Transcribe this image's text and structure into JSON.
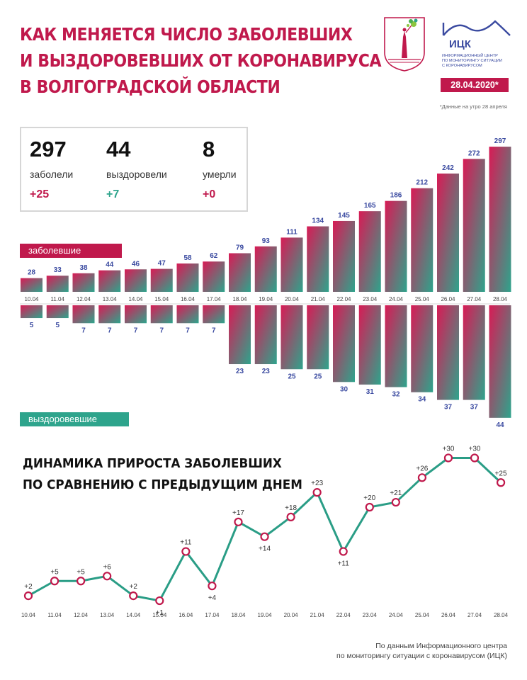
{
  "header": {
    "title_lines": [
      "КАК МЕНЯЕТСЯ ЧИСЛО ЗАБОЛЕВШИХ",
      "И ВЫЗДОРОВЕВШИХ ОТ КОРОНАВИРУСА",
      "В ВОЛГОГРАДСКОЙ ОБЛАСТИ"
    ],
    "logo_name": "ИЦК",
    "logo_sub": "ИНФОРМАЦИОННЫЙ ЦЕНТР\nПО МОНИТОРИНГУ СИТУАЦИИ\nС КОРОНАВИРУСОМ",
    "date": "28.04.2020*",
    "footnote": "*Данные на утро 28 апреля"
  },
  "summary": {
    "sick": {
      "value": "297",
      "label": "заболели",
      "delta": "+25"
    },
    "recovered": {
      "value": "44",
      "label": "выздоровели",
      "delta": "+7"
    },
    "dead": {
      "value": "8",
      "label": "умерли",
      "delta": "+0"
    }
  },
  "colors": {
    "accent": "#c0194c",
    "teal": "#2ea48c",
    "line": "#2a9d86"
  },
  "chart_data": [
    {
      "type": "bar",
      "categories": [
        "10.04",
        "11.04",
        "12.04",
        "13.04",
        "14.04",
        "15.04",
        "16.04",
        "17.04",
        "18.04",
        "19.04",
        "20.04",
        "21.04",
        "22.04",
        "23.04",
        "24.04",
        "25.04",
        "26.04",
        "27.04",
        "28.04"
      ],
      "series": [
        {
          "name": "заболевшие",
          "values": [
            28,
            33,
            38,
            44,
            46,
            47,
            58,
            62,
            79,
            93,
            111,
            134,
            145,
            165,
            186,
            212,
            242,
            272,
            297
          ]
        },
        {
          "name": "выздоровевшие",
          "values": [
            5,
            5,
            7,
            7,
            7,
            7,
            7,
            7,
            23,
            23,
            25,
            25,
            30,
            31,
            32,
            34,
            37,
            37,
            44
          ]
        }
      ],
      "title": "",
      "xlabel": "",
      "ylabel": "",
      "grid": false
    },
    {
      "type": "line",
      "title": "ДИНАМИКА ПРИРОСТА ЗАБОЛЕВШИХ ПО СРАВНЕНИЮ С ПРЕДЫДУЩИМ ДНЕМ",
      "title_lines": [
        "ДИНАМИКА ПРИРОСТА ЗАБОЛЕВШИХ",
        "ПО СРАВНЕНИЮ С ПРЕДЫДУЩИМ ДНЕМ"
      ],
      "x": [
        "10.04",
        "11.04",
        "12.04",
        "13.04",
        "14.04",
        "15.04",
        "16.04",
        "17.04",
        "18.04",
        "19.04",
        "20.04",
        "21.04",
        "22.04",
        "23.04",
        "24.04",
        "25.04",
        "26.04",
        "27.04",
        "28.04"
      ],
      "values": [
        2,
        5,
        5,
        6,
        2,
        1,
        11,
        4,
        17,
        14,
        18,
        23,
        11,
        20,
        21,
        26,
        30,
        30,
        25
      ],
      "labels": [
        "+2",
        "+5",
        "+5",
        "+6",
        "+2",
        "+1",
        "+11",
        "+4",
        "+17",
        "+14",
        "+18",
        "+23",
        "+11",
        "+20",
        "+21",
        "+26",
        "+30",
        "+30",
        "+25"
      ],
      "xlabel": "",
      "ylabel": "",
      "grid": false
    }
  ],
  "source_lines": [
    "По данным Информационного центра",
    "по мониторингу ситуации с коронавирусом (ИЦК)"
  ]
}
